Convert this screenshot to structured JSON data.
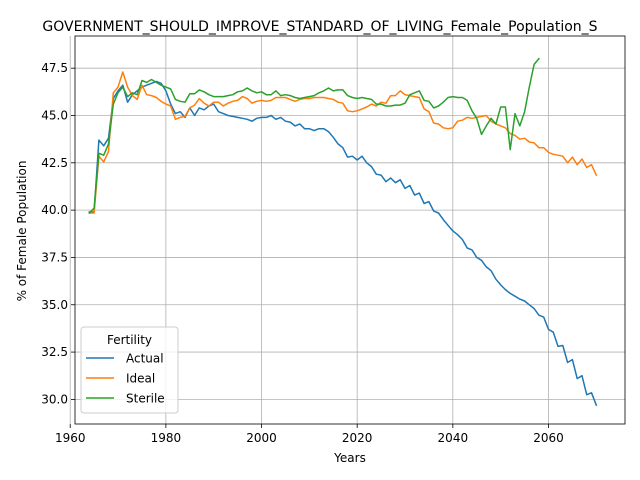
{
  "chart_data": {
    "type": "line",
    "title": "GOVERNMENT_SHOULD_IMPROVE_STANDARD_OF_LIVING_Female_Population_S",
    "xlabel": "Years",
    "ylabel": "% of Female Population",
    "xlim": [
      1961,
      2076
    ],
    "ylim": [
      28.7,
      49.2
    ],
    "xticks": [
      1960,
      1980,
      2000,
      2020,
      2040,
      2060
    ],
    "yticks": [
      30.0,
      32.5,
      35.0,
      37.5,
      40.0,
      42.5,
      45.0,
      47.5
    ],
    "grid": true,
    "legend": {
      "title": "Fertility",
      "position": "lower-left"
    },
    "series": [
      {
        "name": "Actual",
        "color": "#1f77b4",
        "x": [
          1964,
          1965,
          1966,
          1967,
          1968,
          1969,
          1970,
          1971,
          1972,
          1973,
          1974,
          1975,
          1976,
          1977,
          1978,
          1979,
          1980,
          1981,
          1982,
          1983,
          1984,
          1985,
          1986,
          1987,
          1988,
          1989,
          1990,
          1991,
          1992,
          1993,
          1994,
          1995,
          1996,
          1997,
          1998,
          1999,
          2000,
          2001,
          2002,
          2003,
          2004,
          2005,
          2006,
          2007,
          2008,
          2009,
          2010,
          2011,
          2012,
          2013,
          2014,
          2015,
          2016,
          2017,
          2018,
          2019,
          2020,
          2021,
          2022,
          2023,
          2024,
          2025,
          2026,
          2027,
          2028,
          2029,
          2030,
          2031,
          2032,
          2033,
          2034,
          2035,
          2036,
          2037,
          2038,
          2039,
          2040,
          2041,
          2042,
          2043,
          2044,
          2045,
          2046,
          2047,
          2048,
          2049,
          2050,
          2051,
          2052,
          2053,
          2054,
          2055,
          2056,
          2057,
          2058,
          2059,
          2060,
          2061,
          2062,
          2063,
          2064,
          2065,
          2066,
          2067,
          2068,
          2069,
          2070
        ],
        "y": [
          39.9,
          39.9,
          43.7,
          43.4,
          43.8,
          45.9,
          46.3,
          46.6,
          45.7,
          46.1,
          46.3,
          46.5,
          46.6,
          46.7,
          46.8,
          46.7,
          46.3,
          45.6,
          45.1,
          45.2,
          44.9,
          45.4,
          45.0,
          45.4,
          45.3,
          45.5,
          45.6,
          45.2,
          45.1,
          45.0,
          44.95,
          44.9,
          44.85,
          44.8,
          44.7,
          44.85,
          44.9,
          44.9,
          45.0,
          44.8,
          44.9,
          44.7,
          44.65,
          44.45,
          44.55,
          44.3,
          44.3,
          44.2,
          44.3,
          44.3,
          44.15,
          43.85,
          43.5,
          43.3,
          42.8,
          42.85,
          42.65,
          42.85,
          42.5,
          42.3,
          41.9,
          41.85,
          41.5,
          41.7,
          41.45,
          41.6,
          41.15,
          41.3,
          40.8,
          40.9,
          40.35,
          40.45,
          39.95,
          39.85,
          39.5,
          39.2,
          38.9,
          38.7,
          38.45,
          38.0,
          37.9,
          37.5,
          37.35,
          37.0,
          36.8,
          36.35,
          36.05,
          35.8,
          35.6,
          35.45,
          35.3,
          35.2,
          35.0,
          34.8,
          34.45,
          34.35,
          33.7,
          33.55,
          32.8,
          32.85,
          31.95,
          32.1,
          31.1,
          31.25,
          30.25,
          30.35,
          29.7
        ]
      },
      {
        "name": "Ideal",
        "color": "#ff7f0e",
        "x": [
          1964,
          1965,
          1966,
          1967,
          1968,
          1969,
          1970,
          1971,
          1972,
          1973,
          1974,
          1975,
          1976,
          1977,
          1978,
          1979,
          1980,
          1981,
          1982,
          1983,
          1984,
          1985,
          1986,
          1987,
          1988,
          1989,
          1990,
          1991,
          1992,
          1993,
          1994,
          1995,
          1996,
          1997,
          1998,
          1999,
          2000,
          2001,
          2002,
          2003,
          2004,
          2005,
          2006,
          2007,
          2008,
          2009,
          2010,
          2011,
          2012,
          2013,
          2014,
          2015,
          2016,
          2017,
          2018,
          2019,
          2020,
          2021,
          2022,
          2023,
          2024,
          2025,
          2026,
          2027,
          2028,
          2029,
          2030,
          2031,
          2032,
          2033,
          2034,
          2035,
          2036,
          2037,
          2038,
          2039,
          2040,
          2041,
          2042,
          2043,
          2044,
          2045,
          2046,
          2047,
          2048,
          2049,
          2050,
          2051,
          2052,
          2053,
          2054,
          2055,
          2056,
          2057,
          2058,
          2059,
          2060,
          2061,
          2062,
          2063,
          2064,
          2065,
          2066,
          2067,
          2068,
          2069,
          2070
        ],
        "y": [
          39.85,
          39.85,
          42.85,
          42.55,
          43.1,
          46.2,
          46.5,
          47.3,
          46.5,
          46.05,
          45.85,
          46.6,
          46.1,
          46.05,
          45.95,
          45.75,
          45.6,
          45.5,
          44.8,
          44.9,
          44.95,
          45.4,
          45.55,
          45.9,
          45.65,
          45.5,
          45.7,
          45.7,
          45.5,
          45.65,
          45.75,
          45.8,
          46.0,
          45.9,
          45.65,
          45.75,
          45.8,
          45.75,
          45.8,
          45.95,
          45.95,
          45.95,
          45.85,
          45.75,
          45.85,
          45.9,
          45.9,
          45.95,
          45.95,
          45.95,
          45.9,
          45.85,
          45.7,
          45.65,
          45.25,
          45.2,
          45.25,
          45.35,
          45.45,
          45.6,
          45.5,
          45.7,
          45.65,
          46.05,
          46.05,
          46.3,
          46.1,
          46.05,
          46.0,
          45.95,
          45.35,
          45.2,
          44.6,
          44.55,
          44.35,
          44.3,
          44.35,
          44.7,
          44.75,
          44.9,
          44.85,
          44.9,
          44.95,
          45.0,
          44.7,
          44.55,
          44.45,
          44.35,
          44.05,
          43.95,
          43.75,
          43.8,
          43.6,
          43.55,
          43.3,
          43.3,
          43.05,
          42.95,
          42.9,
          42.85,
          42.5,
          42.8,
          42.4,
          42.7,
          42.25,
          42.4,
          41.85
        ]
      },
      {
        "name": "Sterile",
        "color": "#2ca02c",
        "x": [
          1964,
          1965,
          1966,
          1967,
          1968,
          1969,
          1970,
          1971,
          1972,
          1973,
          1974,
          1975,
          1976,
          1977,
          1978,
          1979,
          1980,
          1981,
          1982,
          1983,
          1984,
          1985,
          1986,
          1987,
          1988,
          1989,
          1990,
          1991,
          1992,
          1993,
          1994,
          1995,
          1996,
          1997,
          1998,
          1999,
          2000,
          2001,
          2002,
          2003,
          2004,
          2005,
          2006,
          2007,
          2008,
          2009,
          2010,
          2011,
          2012,
          2013,
          2014,
          2015,
          2016,
          2017,
          2018,
          2019,
          2020,
          2021,
          2022,
          2023,
          2024,
          2025,
          2026,
          2027,
          2028,
          2029,
          2030,
          2031,
          2032,
          2033,
          2034,
          2035,
          2036,
          2037,
          2038,
          2039,
          2040,
          2041,
          2042,
          2043,
          2044,
          2045,
          2046,
          2047,
          2048,
          2049,
          2050,
          2051,
          2052,
          2053,
          2054,
          2055,
          2056,
          2057,
          2058
        ],
        "y": [
          39.85,
          40.1,
          43.0,
          42.9,
          43.5,
          45.6,
          46.2,
          46.5,
          46.0,
          46.2,
          46.1,
          46.85,
          46.75,
          46.9,
          46.75,
          46.6,
          46.5,
          46.4,
          45.85,
          45.75,
          45.7,
          46.15,
          46.15,
          46.35,
          46.25,
          46.1,
          46.0,
          46.0,
          46.0,
          46.05,
          46.1,
          46.25,
          46.3,
          46.45,
          46.3,
          46.2,
          46.25,
          46.1,
          46.1,
          46.3,
          46.05,
          46.1,
          46.05,
          45.95,
          45.9,
          45.95,
          46.0,
          46.05,
          46.2,
          46.3,
          46.45,
          46.3,
          46.35,
          46.35,
          46.05,
          45.95,
          45.9,
          45.95,
          45.9,
          45.85,
          45.6,
          45.6,
          45.5,
          45.5,
          45.55,
          45.55,
          45.65,
          46.1,
          46.2,
          46.3,
          45.8,
          45.75,
          45.4,
          45.5,
          45.7,
          45.95,
          46.0,
          45.95,
          45.95,
          45.8,
          45.25,
          44.85,
          44.0,
          44.45,
          44.85,
          44.55,
          45.45,
          45.45,
          43.2,
          45.1,
          44.45,
          45.2,
          46.5,
          47.7,
          48.0
        ]
      }
    ]
  }
}
